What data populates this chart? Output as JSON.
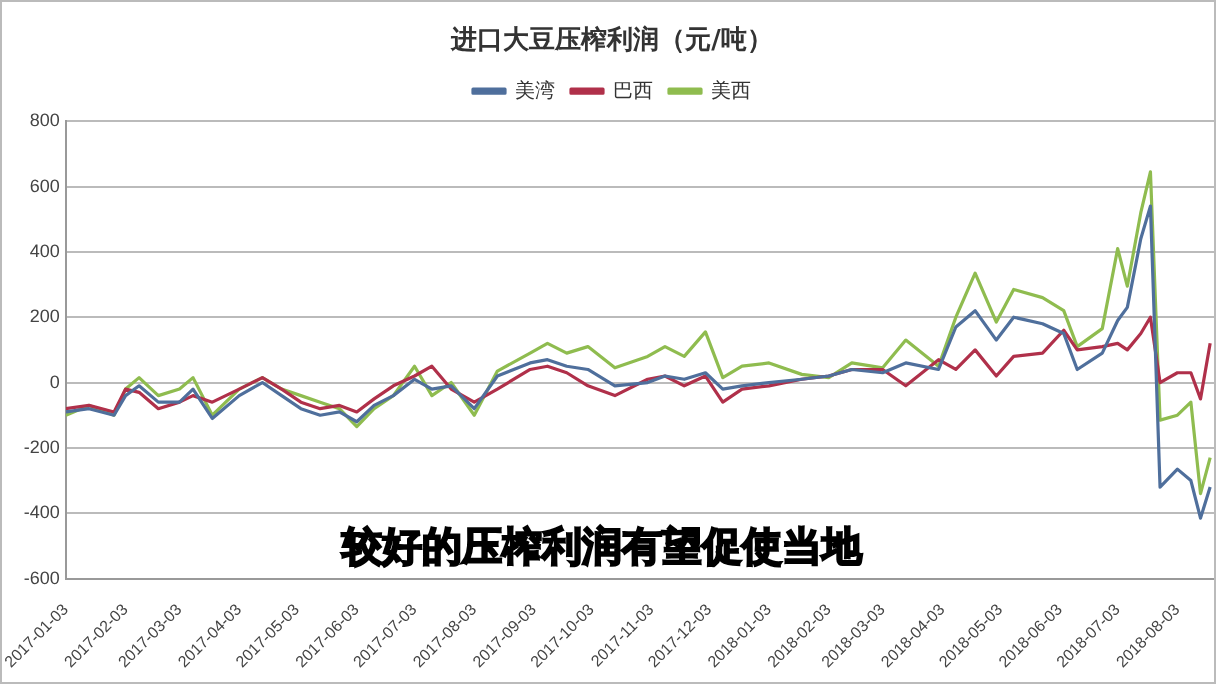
{
  "chart_data": {
    "type": "line",
    "title": "进口大豆压榨利润（元/吨）",
    "annotations": [
      "较好的压榨利润有望促使当地"
    ],
    "xlim": [
      "2017-01-03",
      "2018-08-22"
    ],
    "xticks": [
      "2017-01-03",
      "2017-02-03",
      "2017-03-03",
      "2017-04-03",
      "2017-05-03",
      "2017-06-03",
      "2017-07-03",
      "2017-08-03",
      "2017-09-03",
      "2017-10-03",
      "2017-11-03",
      "2017-12-03",
      "2018-01-03",
      "2018-02-03",
      "2018-03-03",
      "2018-04-03",
      "2018-05-03",
      "2018-06-03",
      "2018-07-03",
      "2018-08-03"
    ],
    "ylim": [
      -600,
      800
    ],
    "yticks": [
      -600,
      -400,
      -200,
      0,
      200,
      400,
      600,
      800
    ],
    "grid": "y",
    "legend": "top",
    "marker": "none",
    "line_style": "solid",
    "x": [
      "2017-01-03",
      "2017-01-15",
      "2017-01-28",
      "2017-02-03",
      "2017-02-10",
      "2017-02-20",
      "2017-03-03",
      "2017-03-10",
      "2017-03-20",
      "2017-04-03",
      "2017-04-15",
      "2017-04-25",
      "2017-05-05",
      "2017-05-15",
      "2017-05-25",
      "2017-06-03",
      "2017-06-12",
      "2017-06-22",
      "2017-07-03",
      "2017-07-12",
      "2017-07-22",
      "2017-08-03",
      "2017-08-15",
      "2017-09-01",
      "2017-09-10",
      "2017-09-20",
      "2017-10-01",
      "2017-10-15",
      "2017-11-01",
      "2017-11-10",
      "2017-11-20",
      "2017-12-01",
      "2017-12-10",
      "2017-12-20",
      "2018-01-03",
      "2018-01-20",
      "2018-02-03",
      "2018-02-15",
      "2018-03-03",
      "2018-03-15",
      "2018-04-01",
      "2018-04-10",
      "2018-04-20",
      "2018-05-01",
      "2018-05-10",
      "2018-05-25",
      "2018-06-05",
      "2018-06-12",
      "2018-06-25",
      "2018-07-03",
      "2018-07-08",
      "2018-07-15",
      "2018-07-20",
      "2018-07-25",
      "2018-08-03",
      "2018-08-10",
      "2018-08-15",
      "2018-08-20"
    ],
    "series": [
      {
        "name": "美湾",
        "color": "#4f6f9c",
        "values": [
          -90,
          -80,
          -100,
          -40,
          -10,
          -60,
          -60,
          -20,
          -110,
          -40,
          0,
          -40,
          -80,
          -100,
          -90,
          -120,
          -70,
          -40,
          10,
          -20,
          -10,
          -80,
          20,
          60,
          70,
          50,
          40,
          -10,
          0,
          20,
          10,
          30,
          -20,
          -10,
          0,
          10,
          20,
          40,
          30,
          60,
          40,
          170,
          220,
          130,
          200,
          180,
          150,
          40,
          90,
          190,
          230,
          440,
          540,
          -320,
          -265,
          -300,
          -415,
          -320
        ]
      },
      {
        "name": "巴西",
        "color": "#b0304a",
        "values": [
          -80,
          -70,
          -90,
          -20,
          -30,
          -80,
          -60,
          -40,
          -60,
          -20,
          15,
          -20,
          -60,
          -80,
          -70,
          -90,
          -50,
          -10,
          20,
          50,
          -20,
          -60,
          -20,
          40,
          50,
          30,
          -10,
          -40,
          10,
          20,
          -10,
          20,
          -60,
          -20,
          -10,
          10,
          20,
          40,
          40,
          -10,
          70,
          40,
          100,
          20,
          80,
          90,
          160,
          100,
          110,
          120,
          100,
          150,
          200,
          0,
          30,
          30,
          -50,
          120
        ]
      },
      {
        "name": "美西",
        "color": "#8fbc4f",
        "values": [
          -100,
          -70,
          -100,
          -20,
          15,
          -40,
          -20,
          15,
          -100,
          -20,
          15,
          -20,
          -40,
          -60,
          -80,
          -135,
          -80,
          -40,
          50,
          -40,
          0,
          -100,
          35,
          90,
          120,
          90,
          110,
          45,
          80,
          110,
          80,
          155,
          15,
          50,
          60,
          25,
          15,
          60,
          45,
          130,
          50,
          200,
          335,
          185,
          285,
          260,
          220,
          110,
          165,
          410,
          295,
          520,
          645,
          -115,
          -100,
          -60,
          -340,
          -230
        ]
      }
    ]
  }
}
